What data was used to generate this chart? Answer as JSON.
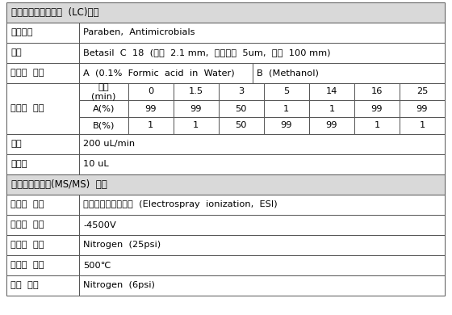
{
  "title_lc": "액체크로마토그래피  (LC)조건",
  "title_ms": "텐덤질량분석기(MS/MS)  조건",
  "header_bg": "#d9d9d9",
  "white_bg": "#ffffff",
  "border_color": "#555555",
  "lc_rows": [
    {
      "label": "대상물질",
      "value": "Paraben,  Antimicrobials"
    },
    {
      "label": "칼럼",
      "value": "Betasil  C  18  (내경  2.1 mm,  입자크기  5um,  길이  100 mm)"
    },
    {
      "label": "이동상  종류",
      "value_a": "A  (0.1%  Formic  acid  in  Water)",
      "value_b": "B  (Methanol)"
    }
  ],
  "gradient_header": [
    "시간\n(min)",
    "0",
    "1.5",
    "3",
    "5",
    "14",
    "16",
    "25"
  ],
  "gradient_A": [
    "A(%)",
    "99",
    "99",
    "50",
    "1",
    "1",
    "99",
    "99"
  ],
  "gradient_B": [
    "B(%)",
    "1",
    "1",
    "50",
    "99",
    "99",
    "1",
    "1"
  ],
  "flow_row": {
    "label": "속도",
    "value": "200 uL/min"
  },
  "injection_row": {
    "label": "주입량",
    "value": "10 uL"
  },
  "ms_rows": [
    {
      "label": "이온화  방법",
      "value": "전자분무식이온화법  (Electrospray  ionization,  ESI)"
    },
    {
      "label": "이온화  전압",
      "value": "-4500V"
    },
    {
      "label": "이온화  가스",
      "value": "Nitrogen  (25psi)"
    },
    {
      "label": "이온원  온도",
      "value": "500℃"
    },
    {
      "label": "반응  가스",
      "value": "Nitrogen  (6psi)"
    }
  ]
}
